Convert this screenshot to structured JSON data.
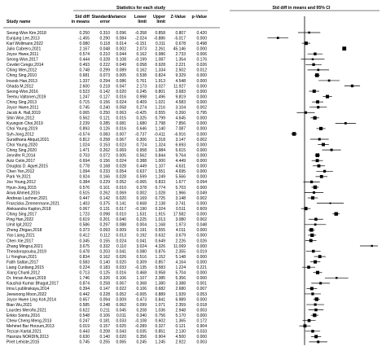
{
  "header": {
    "study_col": "Study name",
    "stats_group": "Statistics for each study",
    "plot_group": "Std diff in means and 95% CI",
    "columns": [
      "Std diff in means",
      "Standard error",
      "Variance",
      "Lower limit",
      "Upper limit",
      "Z-Value",
      "p-Value"
    ]
  },
  "chart_data": {
    "type": "forest",
    "title": "",
    "xlabel": "",
    "xlim": [
      -4,
      4
    ],
    "columns": [
      "Std diff in means",
      "Standard error",
      "Variance",
      "Lower limit",
      "Upper limit",
      "Z-Value",
      "p-Value"
    ],
    "rows": [
      {
        "study": "Seong-Won Kim,2018",
        "values": [
          "0.250",
          "0.310",
          "0.096",
          "-0.358",
          "0.858",
          "0.807",
          "0.420"
        ]
      },
      {
        "study": "Eunjung Lee,2013",
        "values": [
          "-1.455",
          "0.290",
          "0.084",
          "-2.024",
          "-0.886",
          "-5.017",
          "0.000"
        ]
      },
      {
        "study": "Karl Wollmann,2022",
        "values": [
          "0.080",
          "0.118",
          "0.014",
          "-0.151",
          "0.311",
          "0.678",
          "0.498"
        ]
      },
      {
        "study": "Julio Cabrero,2021",
        "values": [
          "2.167",
          "0.048",
          "0.002",
          "2.073",
          "2.261",
          "45.146",
          "0.000"
        ]
      },
      {
        "study": "Joyce Hwee,2011",
        "values": [
          "0.574",
          "0.210",
          "0.044",
          "0.162",
          "0.986",
          "2.733",
          "0.006"
        ]
      },
      {
        "study": "Seong-Won,2017",
        "values": [
          "0.444",
          "0.328",
          "0.108",
          "-0.199",
          "1.087",
          "1.354",
          "0.176"
        ]
      },
      {
        "study": "Cevdet Cengiz,2014",
        "values": [
          "0.493",
          "0.222",
          "0.049",
          "0.058",
          "0.928",
          "2.221",
          "0.026"
        ]
      },
      {
        "study": "Ching Wen,2012",
        "values": [
          "0.748",
          "0.299",
          "0.089",
          "0.162",
          "1.334",
          "2.502",
          "0.012"
        ]
      },
      {
        "study": "Ching Sing,2010",
        "values": [
          "0.681",
          "0.073",
          "0.005",
          "0.538",
          "0.824",
          "9.329",
          "0.000"
        ]
      },
      {
        "study": "Insook Han,2013",
        "values": [
          "1.337",
          "0.294",
          "0.086",
          "0.761",
          "1.913",
          "4.548",
          "0.000"
        ]
      },
      {
        "study": "Ghada M,2012",
        "values": [
          "2.600",
          "0.218",
          "0.047",
          "2.173",
          "3.027",
          "11.927",
          "0.000"
        ]
      },
      {
        "study": "Seong-Won,2016",
        "values": [
          "0.523",
          "0.142",
          "0.020",
          "0.245",
          "0.801",
          "3.683",
          "0.000"
        ]
      },
      {
        "study": "Teemu Valtonen,2019",
        "values": [
          "1.247",
          "0.127",
          "0.016",
          "0.998",
          "1.496",
          "9.819",
          "0.000"
        ]
      },
      {
        "study": "Ching Sing,2013",
        "values": [
          "0.715",
          "0.156",
          "0.024",
          "0.409",
          "1.021",
          "4.583",
          "0.000"
        ]
      },
      {
        "study": "Joyce Hwee,2011",
        "values": [
          "0.745",
          "0.240",
          "0.058",
          "0.274",
          "1.216",
          "3.104",
          "0.002"
        ]
      },
      {
        "study": "Jacob A. Hall,2019",
        "values": [
          "0.065",
          "0.250",
          "0.063",
          "-0.425",
          "0.555",
          "0.260",
          "0.795"
        ]
      },
      {
        "study": "Shin Won,2012",
        "values": [
          "0.562",
          "0.121",
          "0.015",
          "0.325",
          "0.799",
          "4.645",
          "0.000"
        ]
      },
      {
        "study": "Kyungsin Choi,2019",
        "values": [
          "2.239",
          "0.285",
          "0.081",
          "1.680",
          "2.798",
          "7.856",
          "0.000"
        ]
      },
      {
        "study": "Choi Young,2019",
        "values": [
          "0.893",
          "0.126",
          "0.016",
          "0.646",
          "1.140",
          "7.087",
          "0.000"
        ]
      },
      {
        "study": "Syh-Jong,2012",
        "values": [
          "-0.574",
          "0.083",
          "0.007",
          "-0.737",
          "-0.411",
          "-6.916",
          "0.000"
        ]
      },
      {
        "study": "Suratthana Atiqud,2021",
        "values": [
          "0.812",
          "0.258",
          "0.067",
          "0.306",
          "1.318",
          "3.147",
          "0.002"
        ]
      },
      {
        "study": "Choi Young,2020",
        "values": [
          "1.024",
          "0.153",
          "0.023",
          "0.724",
          "1.324",
          "6.693",
          "0.000"
        ]
      },
      {
        "study": "Ching Sing,2020",
        "values": [
          "1.471",
          "0.262",
          "0.069",
          "0.958",
          "1.984",
          "5.615",
          "0.000"
        ]
      },
      {
        "study": "Jennifer R,2014",
        "values": [
          "0.703",
          "0.072",
          "0.005",
          "0.562",
          "0.844",
          "9.764",
          "0.000"
        ]
      },
      {
        "study": "Aziz Cetin,2017",
        "values": [
          "0.694",
          "0.156",
          "0.024",
          "0.388",
          "1.000",
          "4.449",
          "0.000"
        ]
      },
      {
        "study": "Douglas D. Agyei,2015",
        "values": [
          "0.778",
          "0.168",
          "0.028",
          "0.449",
          "1.107",
          "4.631",
          "0.000"
        ]
      },
      {
        "study": "Chen Yen,2012",
        "values": [
          "1.094",
          "0.233",
          "0.054",
          "0.637",
          "1.551",
          "4.695",
          "0.000"
        ]
      },
      {
        "study": "Park Ye,2021",
        "values": [
          "0.924",
          "0.166",
          "0.028",
          "0.599",
          "1.249",
          "5.566",
          "0.000"
        ]
      },
      {
        "study": "Joo Young,2012",
        "values": [
          "0.384",
          "0.229",
          "0.052",
          "-0.065",
          "0.833",
          "1.677",
          "0.094"
        ]
      },
      {
        "study": "Hyun-Jong,2015",
        "values": [
          "0.576",
          "0.101",
          "0.010",
          "0.378",
          "0.774",
          "5.703",
          "0.000"
        ]
      },
      {
        "study": "Arwa Ahmed,2016",
        "values": [
          "0.515",
          "0.262",
          "0.069",
          "0.002",
          "1.028",
          "1.966",
          "0.049"
        ]
      },
      {
        "study": "Andreas Lachner,2021",
        "values": [
          "0.447",
          "0.142",
          "0.020",
          "0.169",
          "0.725",
          "3.148",
          "0.002"
        ]
      },
      {
        "study": "Franziska Zimmermann,2021",
        "values": [
          "1.403",
          "0.375",
          "0.141",
          "0.668",
          "2.138",
          "3.741",
          "0.000"
        ]
      },
      {
        "study": "Aleksandra Kaplon,2018",
        "values": [
          "0.067",
          "0.131",
          "0.017",
          "-0.190",
          "0.324",
          "0.511",
          "0.609"
        ]
      },
      {
        "study": "Ching Sing,2017",
        "values": [
          "1.723",
          "0.098",
          "0.010",
          "1.531",
          "1.915",
          "17.582",
          "0.000"
        ]
      },
      {
        "study": "Ping Han,2022",
        "values": [
          "0.619",
          "0.201",
          "0.040",
          "0.225",
          "1.013",
          "3.080",
          "0.002"
        ]
      },
      {
        "study": "Umit Igit,2022",
        "values": [
          "0.586",
          "0.297",
          "0.088",
          "0.004",
          "1.168",
          "1.973",
          "0.048"
        ]
      },
      {
        "study": "Zheng Zhigao,2018",
        "values": [
          "0.373",
          "0.093",
          "0.009",
          "0.191",
          "0.555",
          "4.011",
          "0.000"
        ]
      },
      {
        "study": "Yao Liang,2021",
        "values": [
          "0.412",
          "0.112",
          "0.013",
          "0.192",
          "0.632",
          "3.679",
          "0.000"
        ]
      },
      {
        "study": "Chen Xie,2017",
        "values": [
          "0.345",
          "0.155",
          "0.024",
          "0.041",
          "0.649",
          "2.226",
          "0.026"
        ]
      },
      {
        "study": "Zhang Mingrui,2021",
        "values": [
          "3.675",
          "0.332",
          "0.110",
          "3.024",
          "4.326",
          "11.069",
          "0.000"
        ]
      },
      {
        "study": "Theodoropoulou,2019",
        "values": [
          "0.478",
          "0.203",
          "0.041",
          "0.080",
          "0.876",
          "2.355",
          "0.019"
        ]
      },
      {
        "study": "Li Yonghan,2021",
        "values": [
          "0.834",
          "0.162",
          "0.026",
          "0.516",
          "1.152",
          "5.148",
          "0.000"
        ]
      },
      {
        "study": "Fatih Saltan,2017",
        "values": [
          "0.583",
          "0.140",
          "0.020",
          "0.309",
          "0.857",
          "4.164",
          "0.000"
        ]
      },
      {
        "study": "Liang Cunliang,2015",
        "values": [
          "0.224",
          "0.183",
          "0.033",
          "-0.135",
          "0.583",
          "1.224",
          "0.221"
        ]
      },
      {
        "study": "Xiang Chunli,2012",
        "values": [
          "0.713",
          "0.125",
          "0.016",
          "0.468",
          "0.958",
          "5.704",
          "0.000"
        ]
      },
      {
        "study": "Dr. Imran Ansari,2019",
        "values": [
          "1.746",
          "0.326",
          "0.106",
          "1.107",
          "2.385",
          "5.356",
          "0.000"
        ]
      },
      {
        "study": "Kaushal Kumar Bhagat,2017",
        "values": [
          "0.874",
          "0.258",
          "0.067",
          "0.368",
          "1.380",
          "3.388",
          "0.001"
        ]
      },
      {
        "study": "Irina Lyublinskaya,2014",
        "values": [
          "0.394",
          "0.147",
          "0.022",
          "0.106",
          "0.682",
          "2.680",
          "0.007"
        ]
      },
      {
        "study": "Jeewoong Moon,2022",
        "values": [
          "0.442",
          "0.228",
          "0.052",
          "-0.005",
          "0.889",
          "1.939",
          "0.053"
        ]
      },
      {
        "study": "Joyce Hwee Ling Koh,2014",
        "values": [
          "0.657",
          "0.094",
          "0.009",
          "0.473",
          "0.841",
          "6.989",
          "0.000"
        ]
      },
      {
        "study": "Bian Wu,2021",
        "values": [
          "0.585",
          "0.248",
          "0.062",
          "0.099",
          "1.071",
          "2.359",
          "0.018"
        ]
      },
      {
        "study": "Lourdes Meroño,2021",
        "values": [
          "0.622",
          "0.211",
          "0.045",
          "0.208",
          "1.036",
          "2.948",
          "0.003"
        ]
      },
      {
        "study": "Erkko Sointu,2016",
        "values": [
          "0.548",
          "0.106",
          "0.011",
          "0.340",
          "0.756",
          "5.170",
          "0.000"
        ]
      },
      {
        "study": "Chew Cheng Meng,2013",
        "values": [
          "0.247",
          "0.181",
          "0.033",
          "-0.108",
          "0.602",
          "1.365",
          "0.172"
        ]
      },
      {
        "study": "Mehmet Bar Horzum,2013",
        "values": [
          "0.019",
          "0.157",
          "0.025",
          "-0.289",
          "0.327",
          "0.121",
          "0.904"
        ]
      },
      {
        "study": "Tezcan Kartal,2021",
        "values": [
          "0.443",
          "0.208",
          "0.043",
          "0.035",
          "0.851",
          "2.130",
          "0.033"
        ]
      },
      {
        "study": "Hasniza NORDIN,2013",
        "values": [
          "0.630",
          "0.140",
          "0.020",
          "0.356",
          "0.904",
          "4.500",
          "0.000"
        ]
      },
      {
        "study": "Piret Lehiste,2015",
        "values": [
          "0.745",
          "0.255",
          "0.065",
          "0.245",
          "1.245",
          "2.922",
          "0.003"
        ]
      }
    ]
  }
}
